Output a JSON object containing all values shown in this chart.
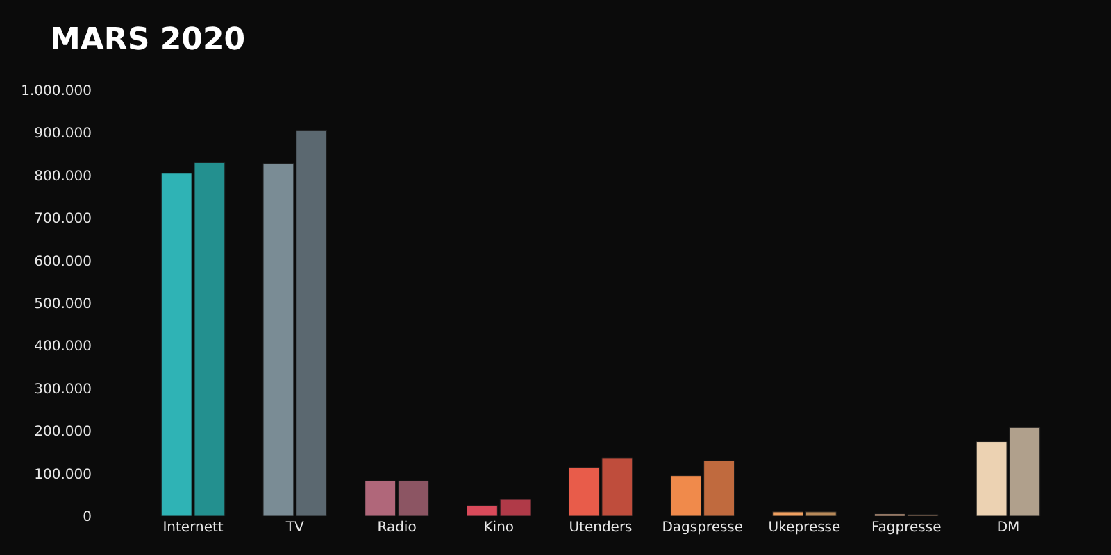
{
  "chart_data": {
    "type": "bar",
    "title": "MARS 2020",
    "categories": [
      "Internett",
      "TV",
      "Radio",
      "Kino",
      "Utenders",
      "Dagspresse",
      "Ukepresse",
      "Fagpresse",
      "DM"
    ],
    "series": [
      {
        "colors": [
          "#2fb3b5",
          "#7a8c95",
          "#b0677a",
          "#d94a5a",
          "#e85c4a",
          "#f08a4b",
          "#f0a060",
          "#e8b898",
          "#ecd2b2"
        ],
        "values": [
          805000,
          828000,
          83000,
          25000,
          115000,
          95000,
          10000,
          5000,
          175000
        ]
      },
      {
        "colors": [
          "#23908f",
          "#5b6870",
          "#8c5563",
          "#b03a48",
          "#bf4d3c",
          "#c06a3e",
          "#b88a5a",
          "#a07a60",
          "#b0a08c"
        ],
        "values": [
          830000,
          905000,
          83000,
          39000,
          137000,
          130000,
          10000,
          4000,
          208000
        ]
      }
    ],
    "ylim": [
      0,
      1000000
    ],
    "yticks": [
      {
        "value": 0,
        "label": "0"
      },
      {
        "value": 100000,
        "label": "100.000"
      },
      {
        "value": 200000,
        "label": "200.000"
      },
      {
        "value": 300000,
        "label": "300.000"
      },
      {
        "value": 400000,
        "label": "400.000"
      },
      {
        "value": 500000,
        "label": "500.000"
      },
      {
        "value": 600000,
        "label": "600.000"
      },
      {
        "value": 700000,
        "label": "700.000"
      },
      {
        "value": 800000,
        "label": "800.000"
      },
      {
        "value": 900000,
        "label": "900.000"
      },
      {
        "value": 1000000,
        "label": "1.000.000"
      }
    ],
    "grid": false
  }
}
